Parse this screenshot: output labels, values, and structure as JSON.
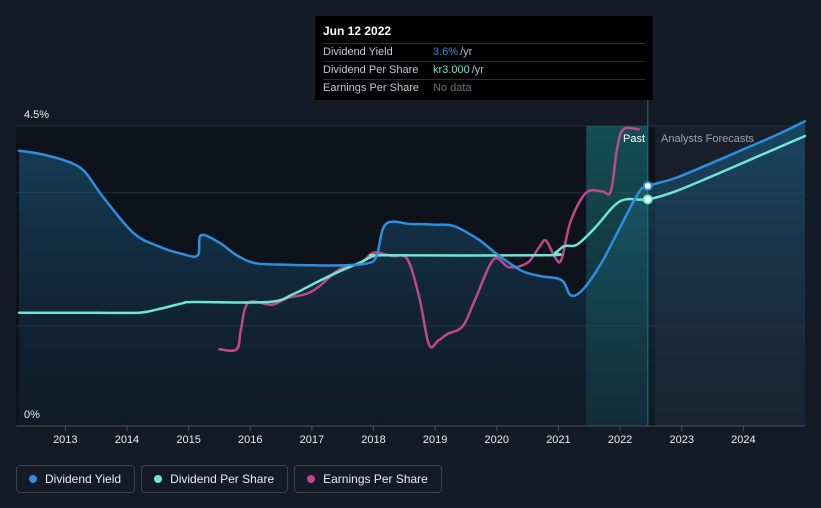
{
  "tooltip": {
    "date": "Jun 12 2022",
    "rows": [
      {
        "label": "Dividend Yield",
        "value": "3.6%",
        "unit": "/yr",
        "color": "#2e8ee0"
      },
      {
        "label": "Dividend Per Share",
        "value": "kr3.000",
        "unit": "/yr",
        "color": "#6fe6d3"
      },
      {
        "label": "Earnings Per Share",
        "value": "No data",
        "unit": "",
        "color": "#6b7079"
      }
    ]
  },
  "regions": {
    "past_label": "Past",
    "forecast_label": "Analysts Forecasts"
  },
  "legend": [
    {
      "label": "Dividend Yield",
      "color": "#2e8ee0"
    },
    {
      "label": "Dividend Per Share",
      "color": "#6fe6d3"
    },
    {
      "label": "Earnings Per Share",
      "color": "#c2478a"
    }
  ],
  "chart_data": {
    "type": "line",
    "ylim": [
      0,
      4.5
    ],
    "y_tick_labels": [
      "0%",
      "4.5%"
    ],
    "xlim": [
      2012.2,
      2025.0
    ],
    "x_ticks": [
      2013,
      2014,
      2015,
      2016,
      2017,
      2018,
      2019,
      2020,
      2021,
      2022,
      2023,
      2024
    ],
    "x_tick_labels": [
      "2013",
      "2014",
      "2015",
      "2016",
      "2017",
      "2018",
      "2019",
      "2020",
      "2021",
      "2022",
      "2023",
      "2024"
    ],
    "past_end": 2022.45,
    "highlight_start": 2021.45,
    "series": [
      {
        "name": "Dividend Yield",
        "color": "#2e8ee0",
        "points": [
          [
            2012.25,
            4.13
          ],
          [
            2012.6,
            4.08
          ],
          [
            2013.0,
            3.98
          ],
          [
            2013.3,
            3.83
          ],
          [
            2013.6,
            3.45
          ],
          [
            2014.1,
            2.9
          ],
          [
            2014.5,
            2.7
          ],
          [
            2014.9,
            2.58
          ],
          [
            2015.15,
            2.56
          ],
          [
            2015.2,
            2.86
          ],
          [
            2015.5,
            2.75
          ],
          [
            2015.8,
            2.55
          ],
          [
            2016.1,
            2.44
          ],
          [
            2016.6,
            2.42
          ],
          [
            2017.0,
            2.41
          ],
          [
            2017.5,
            2.41
          ],
          [
            2017.9,
            2.44
          ],
          [
            2018.05,
            2.55
          ],
          [
            2018.2,
            3.03
          ],
          [
            2018.6,
            3.03
          ],
          [
            2019.0,
            3.02
          ],
          [
            2019.3,
            3.0
          ],
          [
            2019.7,
            2.8
          ],
          [
            2020.0,
            2.58
          ],
          [
            2020.4,
            2.33
          ],
          [
            2020.7,
            2.25
          ],
          [
            2021.05,
            2.19
          ],
          [
            2021.2,
            1.96
          ],
          [
            2021.4,
            2.05
          ],
          [
            2021.7,
            2.45
          ],
          [
            2022.0,
            2.98
          ],
          [
            2022.3,
            3.5
          ],
          [
            2022.45,
            3.6
          ],
          [
            2022.9,
            3.72
          ],
          [
            2023.5,
            3.95
          ],
          [
            2024.0,
            4.15
          ],
          [
            2024.5,
            4.35
          ],
          [
            2025.0,
            4.57
          ]
        ]
      },
      {
        "name": "Dividend Per Share",
        "color": "#6fe6d3",
        "points": [
          [
            2012.25,
            1.7
          ],
          [
            2013.5,
            1.7
          ],
          [
            2014.2,
            1.7
          ],
          [
            2014.5,
            1.75
          ],
          [
            2014.9,
            1.84
          ],
          [
            2015.1,
            1.86
          ],
          [
            2016.3,
            1.86
          ],
          [
            2016.7,
            1.98
          ],
          [
            2017.0,
            2.12
          ],
          [
            2017.4,
            2.3
          ],
          [
            2017.8,
            2.46
          ],
          [
            2018.0,
            2.55
          ],
          [
            2018.2,
            2.56
          ],
          [
            2020.8,
            2.56
          ],
          [
            2020.95,
            2.6
          ],
          [
            2021.1,
            2.7
          ],
          [
            2021.3,
            2.72
          ],
          [
            2021.6,
            2.98
          ],
          [
            2021.9,
            3.3
          ],
          [
            2022.1,
            3.4
          ],
          [
            2022.45,
            3.4
          ],
          [
            2022.9,
            3.52
          ],
          [
            2023.5,
            3.75
          ],
          [
            2024.0,
            3.95
          ],
          [
            2024.5,
            4.15
          ],
          [
            2025.0,
            4.35
          ]
        ]
      },
      {
        "name": "Earnings Per Share",
        "color": "#c2478a",
        "points": [
          [
            2015.5,
            1.15
          ],
          [
            2015.78,
            1.15
          ],
          [
            2015.85,
            1.45
          ],
          [
            2015.97,
            1.85
          ],
          [
            2016.35,
            1.82
          ],
          [
            2016.6,
            1.92
          ],
          [
            2016.9,
            1.98
          ],
          [
            2017.1,
            2.08
          ],
          [
            2017.45,
            2.35
          ],
          [
            2017.8,
            2.45
          ],
          [
            2018.0,
            2.6
          ],
          [
            2018.3,
            2.55
          ],
          [
            2018.55,
            2.5
          ],
          [
            2018.75,
            1.9
          ],
          [
            2018.9,
            1.22
          ],
          [
            2019.05,
            1.28
          ],
          [
            2019.2,
            1.38
          ],
          [
            2019.45,
            1.5
          ],
          [
            2019.65,
            1.9
          ],
          [
            2019.95,
            2.5
          ],
          [
            2020.2,
            2.38
          ],
          [
            2020.5,
            2.45
          ],
          [
            2020.7,
            2.7
          ],
          [
            2020.8,
            2.78
          ],
          [
            2020.95,
            2.52
          ],
          [
            2021.05,
            2.5
          ],
          [
            2021.2,
            3.08
          ],
          [
            2021.45,
            3.5
          ],
          [
            2021.7,
            3.52
          ],
          [
            2021.85,
            3.52
          ],
          [
            2021.95,
            4.15
          ],
          [
            2022.05,
            4.45
          ],
          [
            2022.3,
            4.45
          ]
        ]
      }
    ]
  }
}
